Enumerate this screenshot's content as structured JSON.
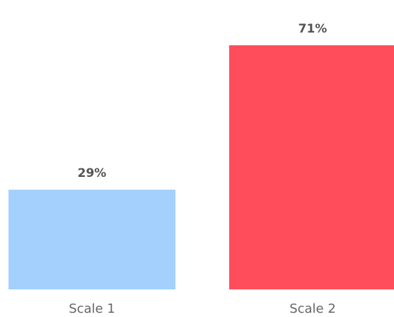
{
  "chart_data": {
    "type": "bar",
    "categories": [
      "Scale 1",
      "Scale 2"
    ],
    "values": [
      29,
      71
    ],
    "value_labels": [
      "29%",
      "71%"
    ],
    "colors": [
      "#a3d0fd",
      "#ff4d5b"
    ],
    "ylim": [
      0,
      71
    ],
    "grid": false,
    "legend": "none",
    "title": "",
    "xlabel": "",
    "ylabel": ""
  }
}
